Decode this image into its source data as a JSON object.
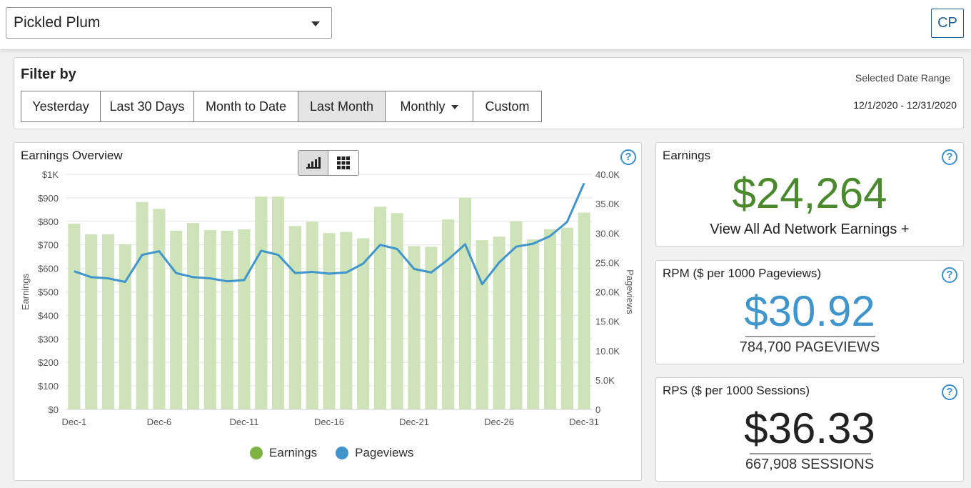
{
  "header": {
    "site_name": "Pickled Plum",
    "avatar_initials": "CP"
  },
  "filter": {
    "title": "Filter by",
    "buttons": [
      "Yesterday",
      "Last 30 Days",
      "Month to Date",
      "Last Month",
      "Monthly",
      "Custom"
    ],
    "active": "Last Month",
    "range_label": "Selected Date Range",
    "range_value": "12/1/2020 - 12/31/2020"
  },
  "chart_panel": {
    "title": "Earnings Overview",
    "help": "?"
  },
  "chart_data": {
    "type": "bar",
    "categories": [
      "Dec-1",
      "Dec-2",
      "Dec-3",
      "Dec-4",
      "Dec-5",
      "Dec-6",
      "Dec-7",
      "Dec-8",
      "Dec-9",
      "Dec-10",
      "Dec-11",
      "Dec-12",
      "Dec-13",
      "Dec-14",
      "Dec-15",
      "Dec-16",
      "Dec-17",
      "Dec-18",
      "Dec-19",
      "Dec-20",
      "Dec-21",
      "Dec-22",
      "Dec-23",
      "Dec-24",
      "Dec-25",
      "Dec-26",
      "Dec-27",
      "Dec-28",
      "Dec-29",
      "Dec-30",
      "Dec-31"
    ],
    "tick_labels": [
      "Dec-1",
      "Dec-6",
      "Dec-11",
      "Dec-16",
      "Dec-21",
      "Dec-26",
      "Dec-31"
    ],
    "series": [
      {
        "name": "Earnings",
        "type": "bar",
        "axis": "left",
        "color": "#cfe3b8",
        "values": [
          790,
          745,
          745,
          703,
          882,
          853,
          760,
          793,
          763,
          760,
          766,
          905,
          905,
          780,
          798,
          750,
          755,
          728,
          862,
          835,
          695,
          692,
          808,
          900,
          720,
          735,
          800,
          723,
          767,
          773,
          837
        ]
      },
      {
        "name": "Pageviews",
        "type": "line",
        "axis": "right",
        "color": "#3f95cc",
        "values": [
          23500,
          22500,
          22300,
          21700,
          26300,
          26900,
          23200,
          22500,
          22300,
          21800,
          22000,
          27000,
          26300,
          23200,
          23400,
          23100,
          23300,
          24800,
          28000,
          27300,
          23900,
          23300,
          25500,
          28100,
          21300,
          25000,
          27700,
          28200,
          29500,
          31900,
          38500
        ]
      }
    ],
    "ylabel": "Earnings",
    "y2label": "Pageviews",
    "ylim": [
      0,
      1000
    ],
    "y2lim": [
      0,
      40000
    ],
    "yticks": [
      "$0",
      "$100",
      "$200",
      "$300",
      "$400",
      "$500",
      "$600",
      "$700",
      "$800",
      "$900",
      "$1K"
    ],
    "y2ticks": [
      "0",
      "5.0K",
      "10.0K",
      "15.0K",
      "20.0K",
      "25.0K",
      "30.0K",
      "35.0K",
      "40.0K"
    ],
    "legend": [
      "Earnings",
      "Pageviews"
    ],
    "legend_colors": [
      "#7cb342",
      "#3f95cc"
    ],
    "grid": true
  },
  "earnings": {
    "title": "Earnings",
    "value": "$24,264",
    "link": "View All Ad Network Earnings +"
  },
  "rpm": {
    "title": "RPM ($ per 1000 Pageviews)",
    "value": "$30.92",
    "sub": "784,700 PAGEVIEWS"
  },
  "rps": {
    "title": "RPS ($ per 1000 Sessions)",
    "value": "$36.33",
    "sub": "667,908 SESSIONS"
  },
  "icons": [
    "chevron-down-icon",
    "bar-chart-icon",
    "grid-icon",
    "help-icon"
  ],
  "colors": {
    "accent": "#3f95cc",
    "green": "#4a8a2c"
  }
}
